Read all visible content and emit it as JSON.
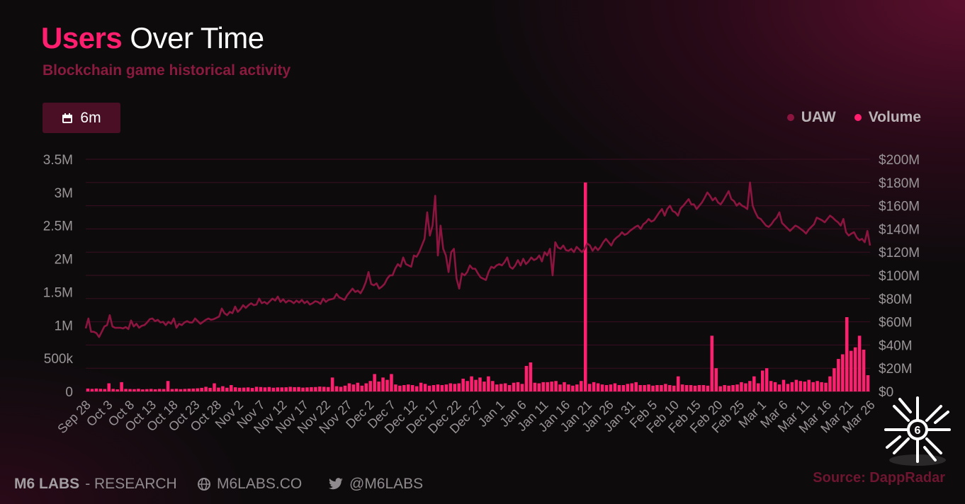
{
  "header": {
    "title_highlight": "Users",
    "title_rest": " Over Time",
    "subtitle": "Blockchain game historical activity"
  },
  "range_button": {
    "label": "6m",
    "icon": "calendar-icon"
  },
  "legend": [
    {
      "label": "UAW",
      "color": "#8c1540"
    },
    {
      "label": "Volume",
      "color": "#ff1f6e"
    }
  ],
  "footer": {
    "brand_bold": "M6 LABS",
    "brand_rest": " - RESEARCH",
    "website": "M6LABS.CO",
    "twitter": "@M6LABS",
    "source_label": "Source:",
    "source_name": "DappRadar"
  },
  "colors": {
    "uaw": "#8c1540",
    "volume": "#ff1f6e",
    "grid": "#3a0f20",
    "axis_text": "#9a9598"
  },
  "chart_data": {
    "type": "bar",
    "title": "Users Over Time",
    "subtitle": "Blockchain game historical activity",
    "x_ticks": [
      "Sep 28",
      "Oct 3",
      "Oct 8",
      "Oct 13",
      "Oct 18",
      "Oct 23",
      "Oct 28",
      "Nov 2",
      "Nov 7",
      "Nov 12",
      "Nov 17",
      "Nov 22",
      "Nov 27",
      "Dec 2",
      "Dec 7",
      "Dec 12",
      "Dec 17",
      "Dec 22",
      "Dec 27",
      "Jan 1",
      "Jan 6",
      "Jan 11",
      "Jan 16",
      "Jan 21",
      "Jan 26",
      "Jan 31",
      "Feb 5",
      "Feb 10",
      "Feb 15",
      "Feb 20",
      "Feb 25",
      "Mar 1",
      "Mar 6",
      "Mar 11",
      "Mar 16",
      "Mar 21",
      "Mar 26"
    ],
    "y_left": {
      "label": "UAW",
      "ticks": [
        "0",
        "500k",
        "1M",
        "1.5M",
        "2M",
        "2.5M",
        "3M",
        "3.5M"
      ],
      "ylim": [
        0,
        3500000
      ]
    },
    "y_right": {
      "label": "Volume",
      "ticks": [
        "$0",
        "$20M",
        "$40M",
        "$60M",
        "$80M",
        "$100M",
        "$120M",
        "$140M",
        "$160M",
        "$180M",
        "$200M"
      ],
      "ylim": [
        0,
        200000000
      ]
    },
    "grid": true,
    "legend_position": "top-right",
    "series": [
      {
        "name": "UAW",
        "type": "line",
        "axis": "left",
        "values": [
          950000,
          1100000,
          900000,
          900000,
          880000,
          820000,
          900000,
          980000,
          1000000,
          1150000,
          980000,
          960000,
          960000,
          960000,
          950000,
          970000,
          940000,
          1070000,
          980000,
          1020000,
          960000,
          990000,
          1000000,
          1040000,
          1090000,
          1100000,
          1060000,
          1080000,
          1040000,
          1050000,
          1000000,
          1050000,
          1020000,
          1100000,
          960000,
          1020000,
          1000000,
          1040000,
          1060000,
          1040000,
          1040000,
          1100000,
          1060000,
          1020000,
          1050000,
          1080000,
          1100000,
          1080000,
          1090000,
          1110000,
          1130000,
          1250000,
          1180000,
          1150000,
          1200000,
          1180000,
          1280000,
          1200000,
          1240000,
          1300000,
          1260000,
          1300000,
          1330000,
          1300000,
          1310000,
          1400000,
          1330000,
          1350000,
          1320000,
          1360000,
          1400000,
          1370000,
          1430000,
          1350000,
          1390000,
          1340000,
          1370000,
          1360000,
          1330000,
          1370000,
          1340000,
          1380000,
          1330000,
          1360000,
          1310000,
          1330000,
          1360000,
          1350000,
          1320000,
          1400000,
          1350000,
          1380000,
          1390000,
          1400000,
          1470000,
          1420000,
          1400000,
          1380000,
          1450000,
          1500000,
          1550000,
          1500000,
          1520000,
          1480000,
          1550000,
          1650000,
          1800000,
          1620000,
          1600000,
          1630000,
          1550000,
          1580000,
          1620000,
          1700000,
          1750000,
          1750000,
          1850000,
          1920000,
          1880000,
          2020000,
          1920000,
          1900000,
          1880000,
          2050000,
          2030000,
          2100000,
          2200000,
          2300000,
          2700000,
          2350000,
          2500000,
          2950000,
          2050000,
          2500000,
          2150000,
          2050000,
          1800000,
          2100000,
          2150000,
          1700000,
          1550000,
          1780000,
          1750000,
          1800000,
          1900000,
          1850000,
          1850000,
          1780000,
          1720000,
          1700000,
          1680000,
          1800000,
          1880000,
          1860000,
          1900000,
          1920000,
          1900000,
          1950000,
          2020000,
          1880000,
          1850000,
          1900000,
          1980000,
          1900000,
          2000000,
          1920000,
          1960000,
          2020000,
          1980000,
          2000000,
          2050000,
          1960000,
          2100000,
          2050000,
          2150000,
          1750000,
          2250000,
          2170000,
          2150000,
          2200000,
          2130000,
          2120000,
          2150000,
          2100000,
          2180000,
          2140000,
          2100000,
          2150000,
          2230000,
          2200000,
          2120000,
          2180000,
          2130000,
          2180000,
          2250000,
          2300000,
          2250000,
          2200000,
          2280000,
          2320000,
          2350000,
          2400000,
          2360000,
          2380000,
          2420000,
          2450000,
          2480000,
          2500000,
          2450000,
          2520000,
          2550000,
          2600000,
          2560000,
          2580000,
          2640000,
          2700000,
          2750000,
          2650000,
          2750000,
          2800000,
          2720000,
          2700000,
          2650000,
          2760000,
          2800000,
          2850000,
          2900000,
          2820000,
          2820000,
          2750000,
          2800000,
          2850000,
          2920000,
          3000000,
          2950000,
          2880000,
          2920000,
          2850000,
          2820000,
          2880000,
          2950000,
          3020000,
          2900000,
          2870000,
          2800000,
          2840000,
          2800000,
          2780000,
          2750000,
          3150000,
          2800000,
          2700000,
          2620000,
          2600000,
          2550000,
          2500000,
          2480000,
          2520000,
          2580000,
          2620000,
          2700000,
          2540000,
          2500000,
          2460000,
          2420000,
          2460000,
          2500000,
          2480000,
          2450000,
          2420000,
          2380000,
          2440000,
          2480000,
          2520000,
          2620000,
          2600000,
          2580000,
          2550000,
          2600000,
          2650000,
          2620000,
          2580000,
          2550000,
          2500000,
          2600000,
          2400000,
          2350000,
          2380000,
          2400000,
          2320000,
          2280000,
          2300000,
          2250000,
          2420000,
          2200000
        ]
      },
      {
        "name": "Volume",
        "type": "bar",
        "axis": "right",
        "values": [
          2500000,
          2200000,
          2500000,
          2300000,
          2100000,
          7000000,
          2200000,
          1800000,
          8000000,
          2200000,
          2100000,
          2000000,
          2300000,
          1800000,
          2000000,
          2200000,
          1900000,
          2200000,
          2100000,
          9000000,
          2100000,
          2300000,
          2000000,
          2200000,
          2400000,
          2500000,
          2700000,
          3100000,
          4000000,
          3100000,
          7000000,
          3300000,
          4500000,
          3200000,
          5500000,
          3600000,
          3200000,
          3300000,
          3500000,
          3000000,
          4000000,
          3800000,
          3500000,
          3800000,
          3200000,
          3500000,
          3500000,
          3600000,
          4000000,
          3700000,
          3800000,
          3300000,
          3500000,
          3700000,
          3800000,
          4200000,
          4000000,
          3800000,
          12000000,
          4500000,
          4000000,
          5000000,
          7000000,
          6000000,
          7500000,
          5000000,
          7000000,
          9000000,
          15000000,
          8500000,
          12000000,
          10000000,
          15000000,
          6000000,
          5000000,
          5500000,
          6000000,
          5500000,
          4500000,
          7500000,
          6500000,
          5000000,
          5500000,
          6000000,
          5500000,
          6000000,
          7000000,
          6500000,
          7000000,
          11000000,
          9000000,
          13000000,
          10000000,
          12000000,
          8500000,
          13000000,
          9000000,
          6000000,
          6500000,
          7000000,
          5500000,
          7500000,
          8000000,
          6500000,
          22000000,
          25000000,
          7500000,
          7000000,
          8000000,
          8000000,
          8500000,
          9000000,
          6000000,
          8000000,
          6000000,
          5000000,
          6000000,
          9000000,
          180000000,
          6500000,
          8000000,
          7000000,
          6000000,
          5500000,
          6000000,
          7000000,
          5500000,
          5500000,
          6500000,
          7000000,
          8000000,
          5500000,
          5500000,
          6000000,
          5000000,
          5500000,
          5500000,
          6500000,
          5500000,
          5000000,
          13000000,
          6000000,
          5500000,
          5500000,
          5000000,
          5500000,
          5500000,
          5000000,
          48000000,
          20000000,
          4500000,
          5500000,
          5000000,
          5500000,
          6000000,
          8000000,
          7000000,
          9000000,
          13000000,
          7000000,
          18000000,
          20000000,
          9000000,
          8000000,
          6000000,
          10000000,
          6500000,
          8000000,
          10000000,
          9000000,
          8500000,
          10000000,
          8000000,
          9000000,
          8000000,
          7500000,
          13000000,
          20000000,
          28000000,
          32000000,
          64000000,
          35000000,
          38000000,
          48000000,
          36000000,
          14000000
        ]
      }
    ]
  }
}
